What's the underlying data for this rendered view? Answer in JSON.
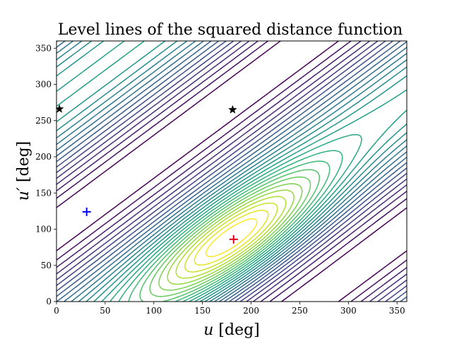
{
  "chart_data": {
    "type": "contour",
    "title": "Level lines of the squared distance function",
    "xlabel_var": "u",
    "xlabel_unit": " [deg]",
    "ylabel_var": "u′",
    "ylabel_unit": " [deg]",
    "xlim": [
      0,
      360
    ],
    "ylim": [
      0,
      360
    ],
    "xticks": [
      0,
      50,
      100,
      150,
      200,
      250,
      300,
      350
    ],
    "yticks": [
      0,
      50,
      100,
      150,
      200,
      250,
      300,
      350
    ],
    "colormap": "viridis",
    "grid": false,
    "markers": [
      {
        "name": "red-cross-marker",
        "shape": "plus",
        "color": "#e4001b",
        "x": 182,
        "y": 86
      },
      {
        "name": "blue-cross-marker",
        "shape": "plus",
        "color": "#0000ff",
        "x": 31,
        "y": 124
      },
      {
        "name": "star-marker-left",
        "shape": "star",
        "color": "#000000",
        "x": 3,
        "y": 266
      },
      {
        "name": "star-marker-center",
        "shape": "star",
        "color": "#000000",
        "x": 181,
        "y": 265
      }
    ]
  }
}
